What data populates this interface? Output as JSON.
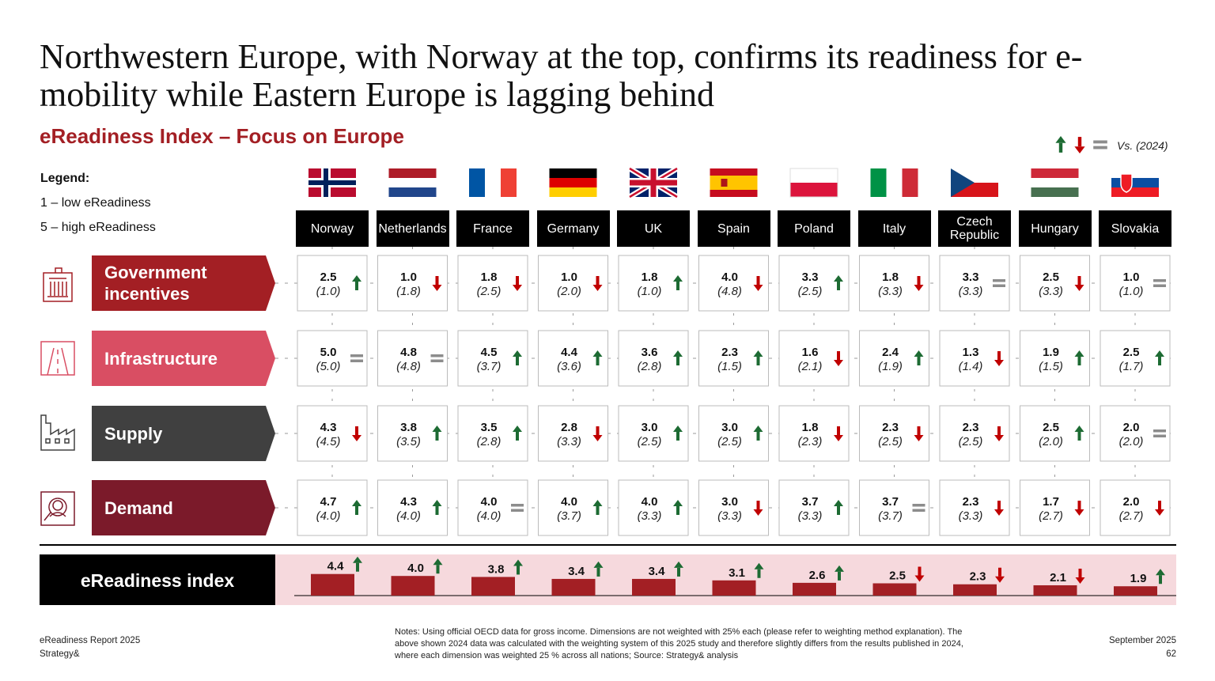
{
  "title": "Northwestern Europe, with Norway at the top, confirms its readiness for e-mobility while Eastern Europe is lagging behind",
  "subtitle": "eReadiness Index – Focus on Europe",
  "comparison_label": "Vs. (2024)",
  "legend": {
    "title": "Legend:",
    "items": [
      "1 – low eReadiness",
      "5 – high eReadiness"
    ]
  },
  "trend_colors": {
    "up": "#1d6b33",
    "down": "#c00000",
    "same": "#8c8c8c"
  },
  "countries": [
    "Norway",
    "Netherlands",
    "France",
    "Germany",
    "UK",
    "Spain",
    "Poland",
    "Italy",
    "Czech Republic",
    "Hungary",
    "Slovakia"
  ],
  "dimensions": [
    {
      "name": "Government incentives",
      "color": "#a31f24",
      "values": [
        "2.5",
        "1.0",
        "1.8",
        "1.0",
        "1.8",
        "4.0",
        "3.3",
        "1.8",
        "3.3",
        "2.5",
        "1.0"
      ],
      "previous": [
        "(1.0)",
        "(1.8)",
        "(2.5)",
        "(2.0)",
        "(1.0)",
        "(4.8)",
        "(2.5)",
        "(3.3)",
        "(3.3)",
        "(3.3)",
        "(1.0)"
      ],
      "trends": [
        "up",
        "down",
        "down",
        "down",
        "up",
        "down",
        "up",
        "down",
        "same",
        "down",
        "same"
      ]
    },
    {
      "name": "Infrastructure",
      "color": "#d94e63",
      "values": [
        "5.0",
        "4.8",
        "4.5",
        "4.4",
        "3.6",
        "2.3",
        "1.6",
        "2.4",
        "1.3",
        "1.9",
        "2.5"
      ],
      "previous": [
        "(5.0)",
        "(4.8)",
        "(3.7)",
        "(3.6)",
        "(2.8)",
        "(1.5)",
        "(2.1)",
        "(1.9)",
        "(1.4)",
        "(1.5)",
        "(1.7)"
      ],
      "trends": [
        "same",
        "same",
        "up",
        "up",
        "up",
        "up",
        "down",
        "up",
        "down",
        "up",
        "up"
      ]
    },
    {
      "name": "Supply",
      "color": "#404040",
      "values": [
        "4.3",
        "3.8",
        "3.5",
        "2.8",
        "3.0",
        "3.0",
        "1.8",
        "2.3",
        "2.3",
        "2.5",
        "2.0"
      ],
      "previous": [
        "(4.5)",
        "(3.5)",
        "(2.8)",
        "(3.3)",
        "(2.5)",
        "(2.5)",
        "(2.3)",
        "(2.5)",
        "(2.5)",
        "(2.0)",
        "(2.0)"
      ],
      "trends": [
        "down",
        "up",
        "up",
        "down",
        "up",
        "up",
        "down",
        "down",
        "down",
        "up",
        "same"
      ]
    },
    {
      "name": "Demand",
      "color": "#7b1a2a",
      "values": [
        "4.7",
        "4.3",
        "4.0",
        "4.0",
        "4.0",
        "3.0",
        "3.7",
        "3.7",
        "2.3",
        "1.7",
        "2.0"
      ],
      "previous": [
        "(4.0)",
        "(4.0)",
        "(4.0)",
        "(3.7)",
        "(3.3)",
        "(3.3)",
        "(3.3)",
        "(3.7)",
        "(3.3)",
        "(2.7)",
        "(2.7)"
      ],
      "trends": [
        "up",
        "up",
        "same",
        "up",
        "up",
        "down",
        "up",
        "same",
        "down",
        "down",
        "down"
      ]
    }
  ],
  "index": {
    "name": "eReadiness index",
    "color": "#a31f24",
    "values": [
      4.4,
      4.0,
      3.8,
      3.4,
      3.4,
      3.1,
      2.6,
      2.5,
      2.3,
      2.1,
      1.9
    ],
    "value_labels": [
      "4.4",
      "4.0",
      "3.8",
      "3.4",
      "3.4",
      "3.1",
      "2.6",
      "2.5",
      "2.3",
      "2.1",
      "1.9"
    ],
    "trends": [
      "up",
      "up",
      "up",
      "up",
      "up",
      "up",
      "up",
      "down",
      "down",
      "down",
      "up"
    ]
  },
  "footer": {
    "left": [
      "eReadiness Report 2025",
      "Strategy&"
    ],
    "notes": "Notes: Using official OECD data for gross income. Dimensions are not weighted with 25% each (please refer to weighting method explanation). The above shown 2024 data was calculated with the weighting system of this 2025 study and therefore slightly differs from the results published in 2024, where each dimension was weighted 25 % across all nations; Source: Strategy& analysis",
    "right": [
      "September 2025",
      "62"
    ]
  }
}
